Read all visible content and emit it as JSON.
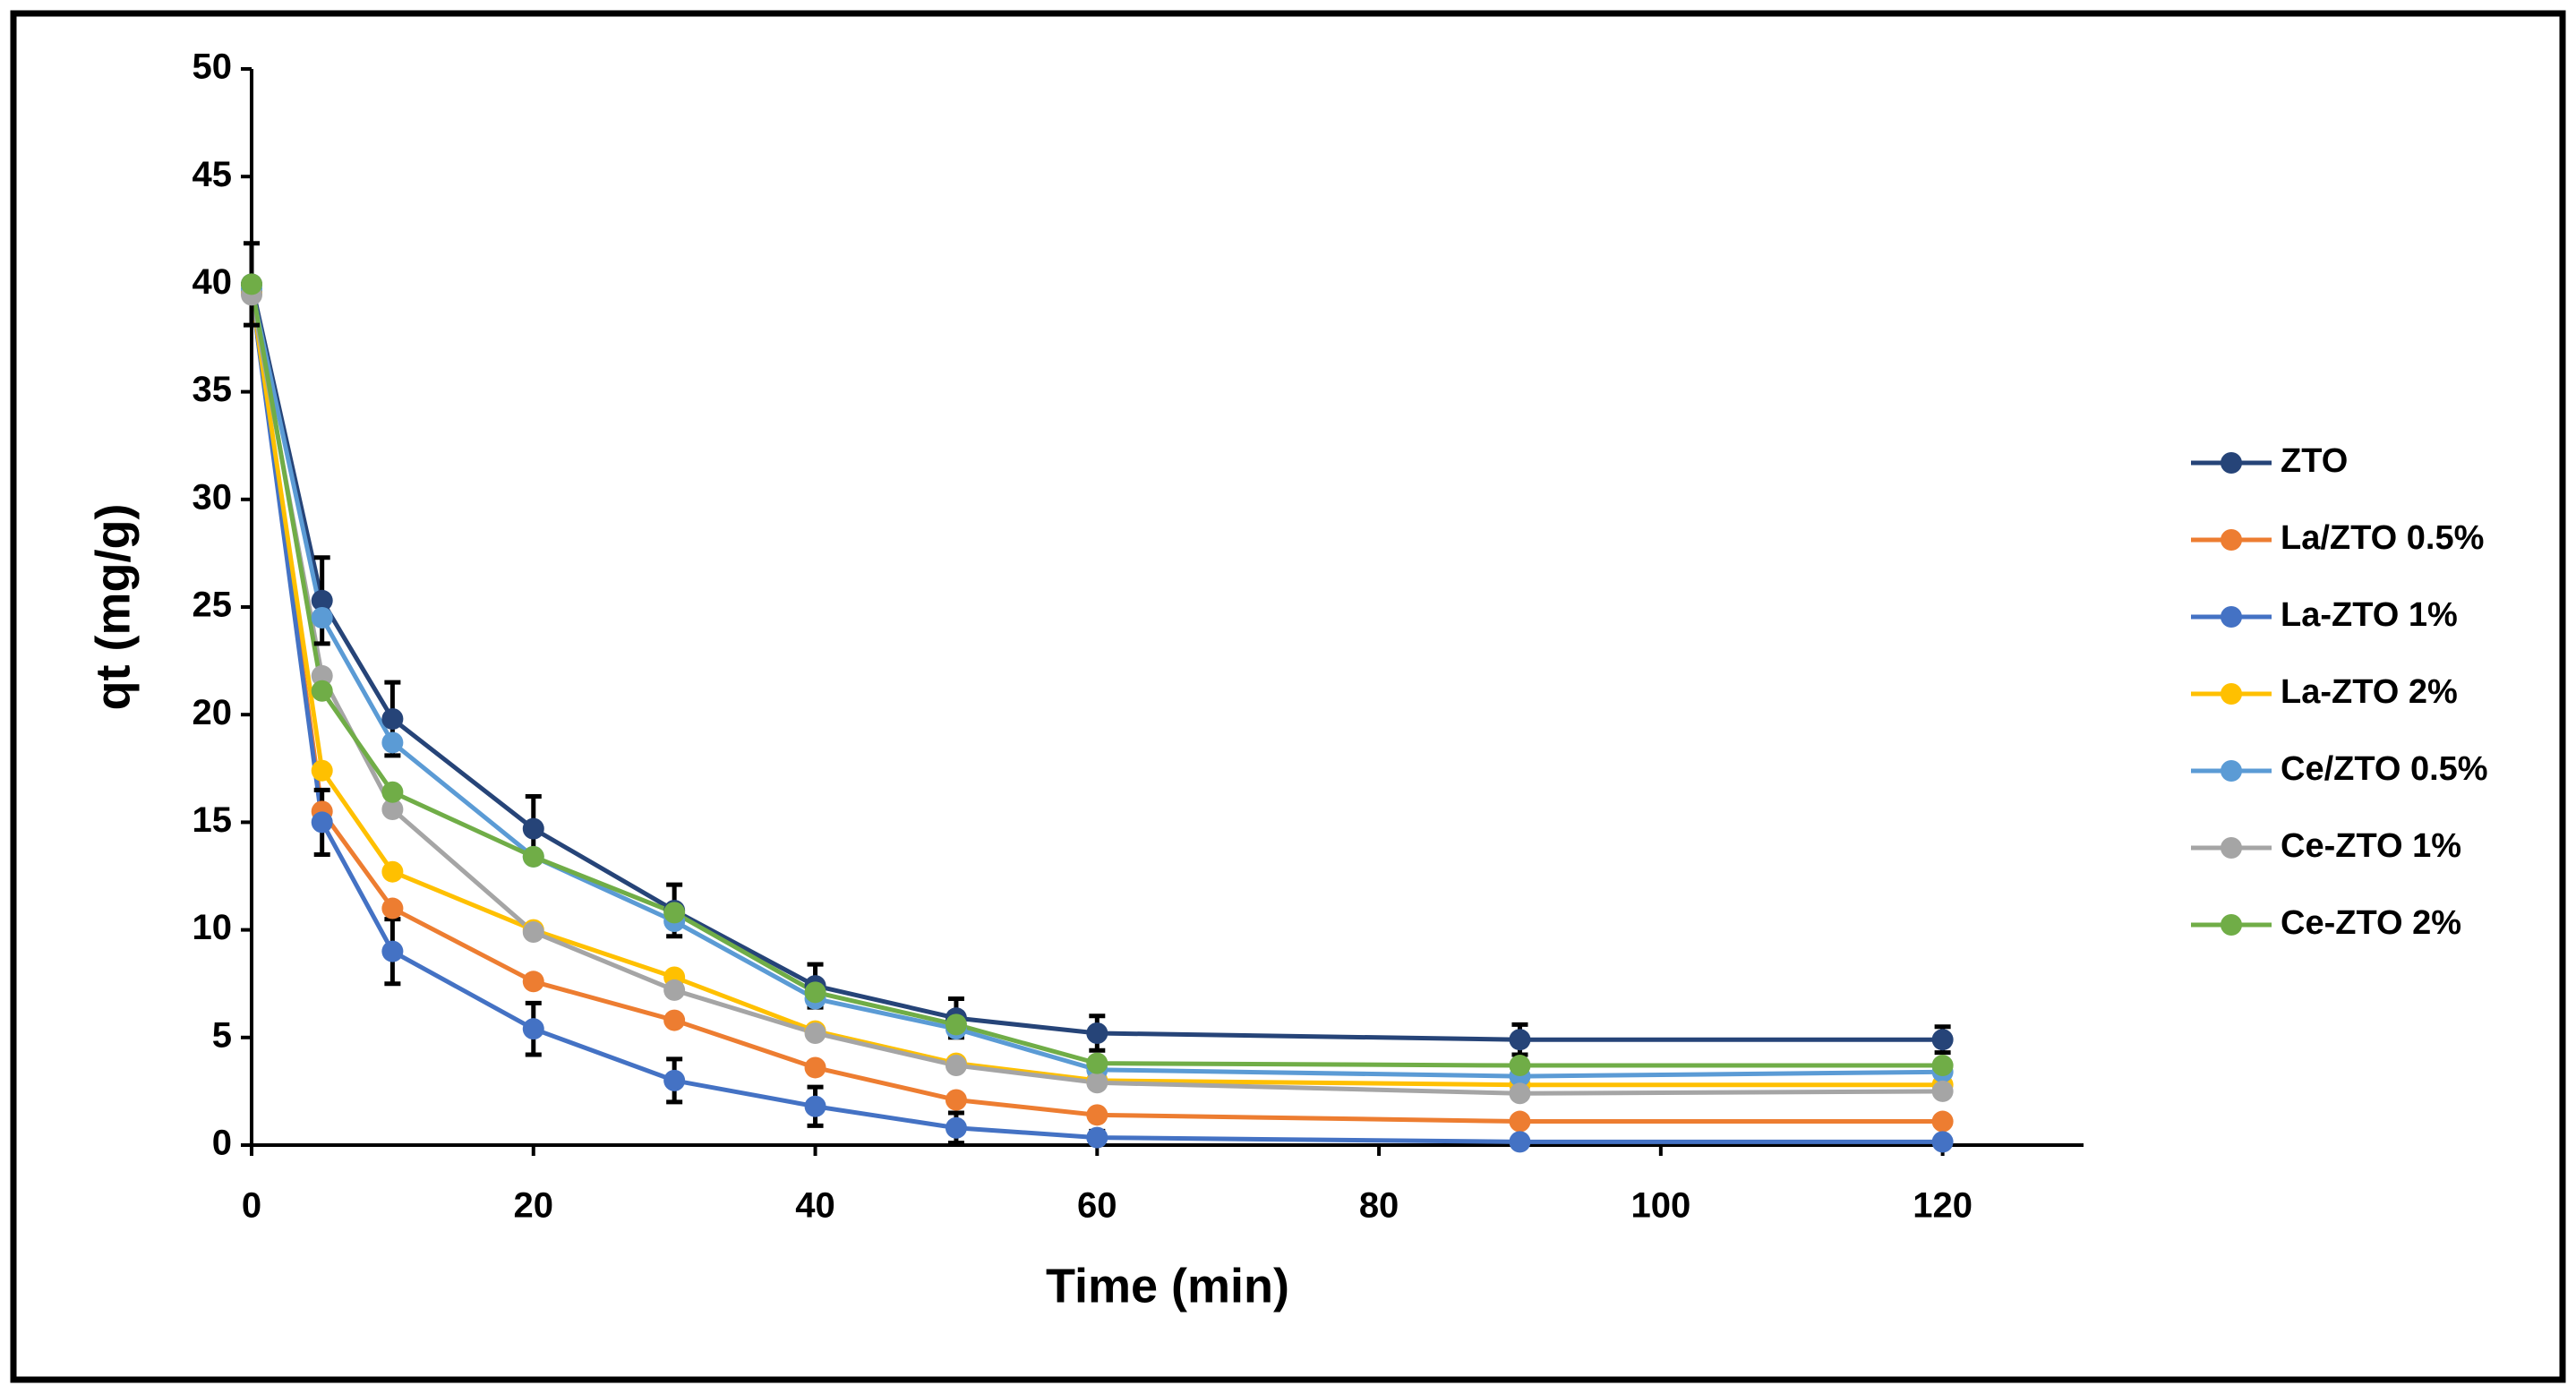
{
  "chart_data": {
    "type": "line",
    "x_label": "Time (min)",
    "y_label": "qt (mg/g)",
    "x": [
      0,
      5,
      10,
      20,
      30,
      40,
      50,
      60,
      90,
      120
    ],
    "xlim": [
      0,
      130
    ],
    "xticks": [
      0,
      20,
      40,
      60,
      80,
      100,
      120
    ],
    "ylim": [
      0,
      50
    ],
    "yticks": [
      0,
      5,
      10,
      15,
      20,
      25,
      30,
      35,
      40,
      45,
      50
    ],
    "legend": "right",
    "series": [
      {
        "name": "ZTO",
        "color": "#264478",
        "values": [
          40,
          25.3,
          19.8,
          14.7,
          10.9,
          7.4,
          5.9,
          5.2,
          4.9,
          4.9
        ],
        "errors": [
          1.9,
          2,
          1.7,
          1.5,
          1.2,
          1,
          0.9,
          0.8,
          0.7,
          0.6
        ]
      },
      {
        "name": "La/ZTO 0.5%",
        "color": "#ed7d31",
        "values": [
          39.6,
          15.5,
          11,
          7.6,
          5.8,
          3.6,
          2.1,
          1.4,
          1.1,
          1.1
        ]
      },
      {
        "name": "La-ZTO 1%",
        "color": "#4472c4",
        "values": [
          39.6,
          15,
          9,
          5.4,
          3,
          1.8,
          0.8,
          0.35,
          0.15,
          0.15
        ],
        "errors": [
          0,
          1.5,
          1.5,
          1.2,
          1,
          0.9,
          0.7,
          0.3,
          0.2,
          0.2
        ]
      },
      {
        "name": "La-ZTO 2%",
        "color": "#ffc000",
        "values": [
          39.6,
          17.4,
          12.7,
          10,
          7.8,
          5.3,
          3.8,
          3,
          2.8,
          2.8
        ]
      },
      {
        "name": "Ce/ZTO 0.5%",
        "color": "#5b9bd5",
        "values": [
          39.8,
          24.5,
          18.7,
          13.4,
          10.4,
          6.8,
          5.4,
          3.5,
          3.2,
          3.4
        ]
      },
      {
        "name": "Ce-ZTO 1%",
        "color": "#a5a5a5",
        "values": [
          39.5,
          21.8,
          15.6,
          9.9,
          7.2,
          5.2,
          3.7,
          2.9,
          2.4,
          2.5
        ]
      },
      {
        "name": "Ce-ZTO 2%",
        "color": "#70ad47",
        "values": [
          40,
          21.1,
          16.4,
          13.4,
          10.8,
          7.1,
          5.6,
          3.8,
          3.7,
          3.7
        ]
      }
    ]
  }
}
